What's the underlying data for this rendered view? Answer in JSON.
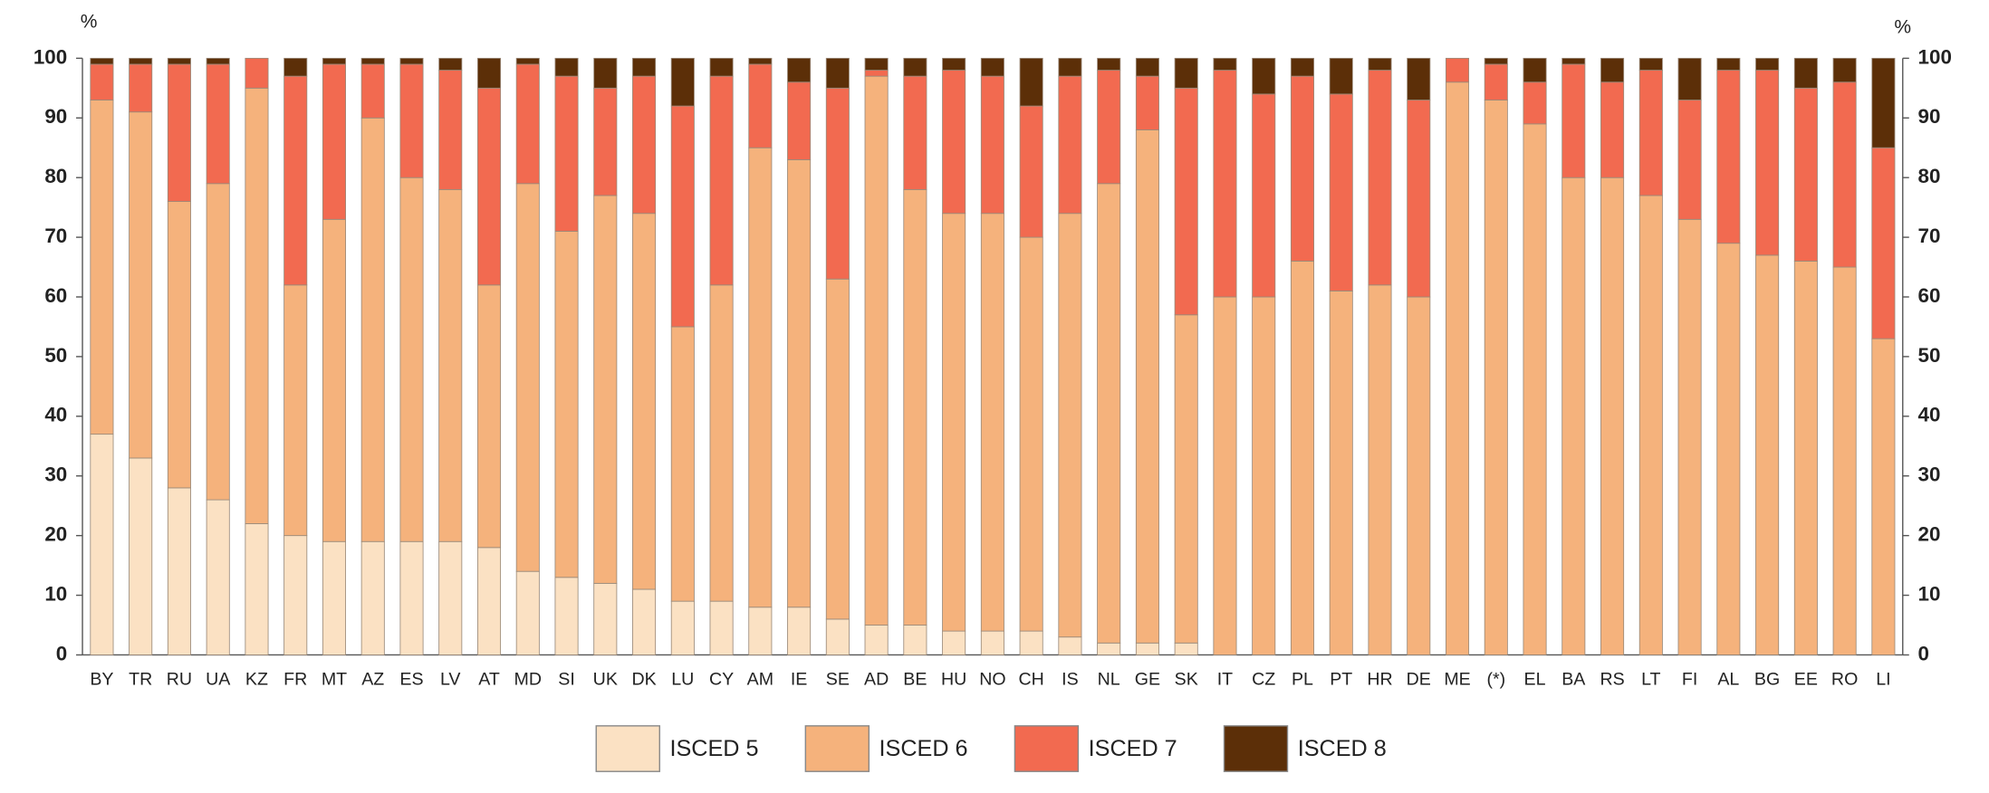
{
  "chart_data": {
    "type": "stacked_bar",
    "y_axis_label": "%",
    "categories": [
      "BY",
      "TR",
      "RU",
      "UA",
      "KZ",
      "FR",
      "MT",
      "AZ",
      "ES",
      "LV",
      "AT",
      "MD",
      "SI",
      "UK",
      "DK",
      "LU",
      "CY",
      "AM",
      "IE",
      "SE",
      "AD",
      "BE",
      "HU",
      "NO",
      "CH",
      "IS",
      "NL",
      "GE",
      "SK",
      "IT",
      "CZ",
      "PL",
      "PT",
      "HR",
      "DE",
      "ME",
      "(*)",
      "EL",
      "BA",
      "RS",
      "LT",
      "FI",
      "AL",
      "BG",
      "EE",
      "RO",
      "LI"
    ],
    "series": [
      {
        "name": "ISCED 5",
        "color": "#fbe1c3",
        "values": [
          37,
          33,
          28,
          26,
          22,
          20,
          19,
          19,
          19,
          19,
          18,
          14,
          13,
          12,
          11,
          9,
          9,
          8,
          8,
          6,
          5,
          5,
          4,
          4,
          4,
          3,
          2,
          2,
          2,
          0,
          0,
          0,
          0,
          0,
          0,
          0,
          0,
          0,
          0,
          0,
          0,
          0,
          0,
          0,
          0,
          0,
          0
        ]
      },
      {
        "name": "ISCED 6",
        "color": "#f5b27c",
        "values": [
          56,
          58,
          48,
          53,
          73,
          42,
          54,
          71,
          61,
          59,
          44,
          65,
          58,
          65,
          63,
          46,
          53,
          77,
          75,
          57,
          92,
          73,
          70,
          70,
          66,
          71,
          77,
          86,
          55,
          60,
          60,
          66,
          61,
          62,
          60,
          96,
          93,
          89,
          80,
          80,
          77,
          73,
          69,
          67,
          66,
          65,
          53
        ]
      },
      {
        "name": "ISCED 7",
        "color": "#f26a50",
        "values": [
          6,
          8,
          23,
          20,
          5,
          35,
          26,
          9,
          19,
          20,
          33,
          20,
          26,
          18,
          23,
          37,
          35,
          14,
          13,
          32,
          1,
          19,
          24,
          23,
          22,
          23,
          19,
          9,
          38,
          38,
          34,
          31,
          33,
          36,
          33,
          4,
          6,
          7,
          19,
          16,
          21,
          20,
          29,
          31,
          29,
          31,
          32
        ]
      },
      {
        "name": "ISCED 8",
        "color": "#5c2f08",
        "values": [
          1,
          1,
          1,
          1,
          0,
          3,
          1,
          1,
          1,
          2,
          5,
          1,
          3,
          5,
          3,
          8,
          3,
          1,
          4,
          5,
          2,
          3,
          2,
          3,
          8,
          3,
          2,
          3,
          5,
          2,
          6,
          3,
          6,
          2,
          7,
          0,
          1,
          4,
          1,
          4,
          2,
          7,
          2,
          2,
          5,
          4,
          15
        ]
      }
    ],
    "ylim": [
      0,
      100
    ],
    "yticks": [
      0,
      10,
      20,
      30,
      40,
      50,
      60,
      70,
      80,
      90,
      100
    ]
  }
}
